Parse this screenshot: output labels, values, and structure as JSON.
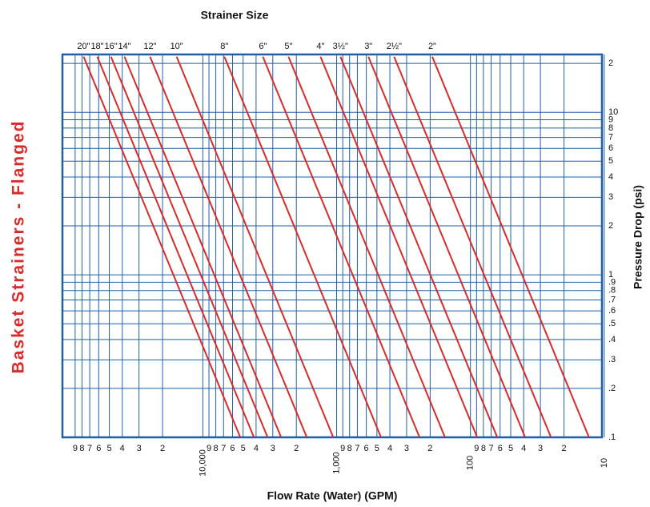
{
  "chart_data": {
    "type": "line",
    "title": "Strainer Size",
    "side_title": "Basket Strainers - Flanged",
    "x_label": "Flow Rate (Water) (GPM)",
    "y_label": "Pressure Drop (psi)",
    "xscale": "log",
    "yscale": "log",
    "grid": true,
    "color": "#d92b2b",
    "grid_color": "#1f5fa8",
    "xlim": [
      112000,
      10.4
    ],
    "ylim": [
      0.1,
      22.7
    ],
    "xticks": [
      {
        "value": 90000,
        "label": "9"
      },
      {
        "value": 80000,
        "label": "8"
      },
      {
        "value": 70000,
        "label": "7"
      },
      {
        "value": 60000,
        "label": "6"
      },
      {
        "value": 50000,
        "label": "5"
      },
      {
        "value": 40000,
        "label": "4"
      },
      {
        "value": 30000,
        "label": "3"
      },
      {
        "value": 20000,
        "label": "2"
      },
      {
        "value": 10000,
        "label": "10,000"
      },
      {
        "value": 9000,
        "label": "9"
      },
      {
        "value": 8000,
        "label": "8"
      },
      {
        "value": 7000,
        "label": "7"
      },
      {
        "value": 6000,
        "label": "6"
      },
      {
        "value": 5000,
        "label": "5"
      },
      {
        "value": 4000,
        "label": "4"
      },
      {
        "value": 3000,
        "label": "3"
      },
      {
        "value": 2000,
        "label": "2"
      },
      {
        "value": 1000,
        "label": "1,000"
      },
      {
        "value": 900,
        "label": "9"
      },
      {
        "value": 800,
        "label": "8"
      },
      {
        "value": 700,
        "label": "7"
      },
      {
        "value": 600,
        "label": "6"
      },
      {
        "value": 500,
        "label": "5"
      },
      {
        "value": 400,
        "label": "4"
      },
      {
        "value": 300,
        "label": "3"
      },
      {
        "value": 200,
        "label": "2"
      },
      100,
      {
        "value": 90,
        "label": "9"
      },
      {
        "value": 80,
        "label": "8"
      },
      {
        "value": 70,
        "label": "7"
      },
      {
        "value": 60,
        "label": "6"
      },
      {
        "value": 50,
        "label": "5"
      },
      {
        "value": 40,
        "label": "4"
      },
      {
        "value": 30,
        "label": "3"
      },
      {
        "value": 20,
        "label": "2"
      },
      10
    ],
    "yticks": [
      {
        "value": 20,
        "label": "2"
      },
      10,
      9,
      8,
      7,
      6,
      5,
      4,
      3,
      2,
      1,
      {
        "value": 0.9,
        "label": ".9"
      },
      {
        "value": 0.8,
        "label": ".8"
      },
      {
        "value": 0.7,
        "label": ".7"
      },
      {
        "value": 0.6,
        "label": ".6"
      },
      {
        "value": 0.5,
        "label": ".5"
      },
      {
        "value": 0.4,
        "label": ".4"
      },
      {
        "value": 0.3,
        "label": ".3"
      },
      {
        "value": 0.2,
        "label": ".2"
      },
      {
        "value": 0.1,
        "label": ".1"
      }
    ],
    "series": [
      {
        "name": "20\"",
        "x": [
          77800,
          5250
        ],
        "values": [
          22,
          0.1
        ]
      },
      {
        "name": "18\"",
        "x": [
          61500,
          4150
        ],
        "values": [
          22,
          0.1
        ]
      },
      {
        "name": "16\"",
        "x": [
          48600,
          3280
        ],
        "values": [
          22,
          0.1
        ]
      },
      {
        "name": "14\"",
        "x": [
          38500,
          2600
        ],
        "values": [
          22,
          0.1
        ]
      },
      {
        "name": "12\"",
        "x": [
          24800,
          1670
        ],
        "values": [
          22,
          0.1
        ]
      },
      {
        "name": "10\"",
        "x": [
          15700,
          1060
        ],
        "values": [
          22,
          0.1
        ]
      },
      {
        "name": "8\"",
        "x": [
          6900,
          466
        ],
        "values": [
          22,
          0.1
        ]
      },
      {
        "name": "6\"",
        "x": [
          3560,
          240
        ],
        "values": [
          22,
          0.1
        ]
      },
      {
        "name": "5\"",
        "x": [
          2290,
          155
        ],
        "values": [
          22,
          0.1
        ]
      },
      {
        "name": "4\"",
        "x": [
          1320,
          89
        ],
        "values": [
          22,
          0.1
        ]
      },
      {
        "name": "3½\"",
        "x": [
          937,
          63
        ],
        "values": [
          22,
          0.1
        ]
      },
      {
        "name": "3\"",
        "x": [
          579,
          39
        ],
        "values": [
          22,
          0.1
        ]
      },
      {
        "name": "2½\"",
        "x": [
          372,
          25
        ],
        "values": [
          22,
          0.1
        ]
      },
      {
        "name": "2\"",
        "x": [
          193,
          13
        ],
        "values": [
          22,
          0.1
        ]
      }
    ]
  }
}
